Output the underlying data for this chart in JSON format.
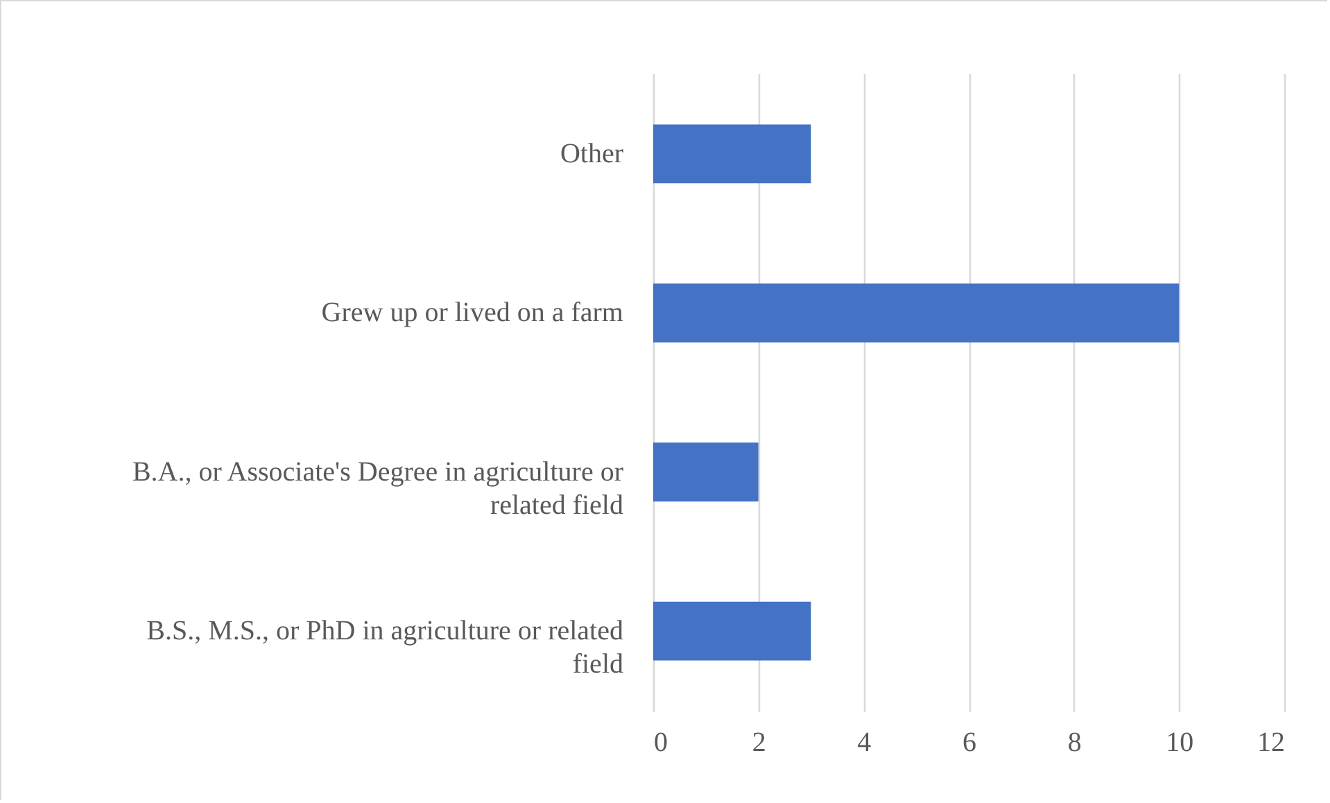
{
  "chart_data": {
    "type": "bar",
    "orientation": "horizontal",
    "categories": [
      "Other",
      "Grew up or lived on a farm",
      "B.A., or Associate's Degree in agriculture or related field",
      "B.S., M.S., or PhD in agriculture or related field"
    ],
    "values": [
      3,
      10,
      2,
      3
    ],
    "color": "#4472c4",
    "xlim": [
      0,
      12
    ],
    "xticks": [
      0,
      2,
      4,
      6,
      8,
      10,
      12
    ],
    "grid": "x"
  }
}
